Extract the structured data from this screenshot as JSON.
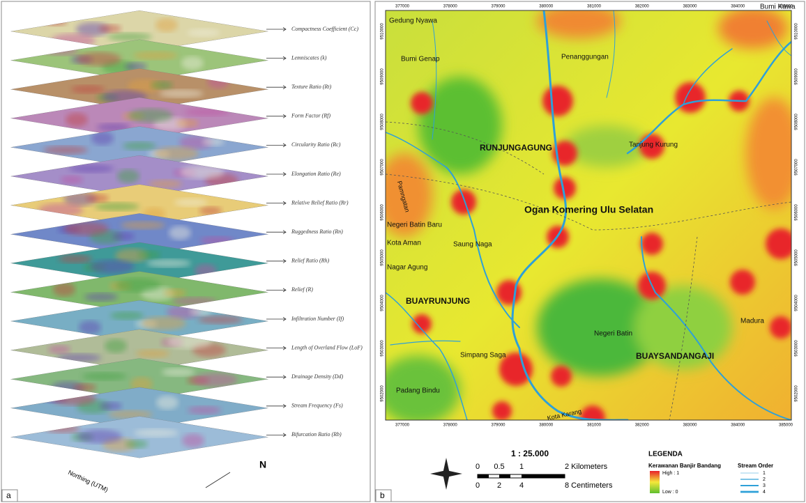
{
  "panel_a": {
    "label": "a",
    "layers": [
      "Compactness Coefficient (Cc)",
      "Lemniscates (k)",
      "Texture Ratio (Rt)",
      "Form Factor (Rf)",
      "Circularity Ratio (Rc)",
      "Elongation Ratio (Re)",
      "Relative Relief Ratio (Rr)",
      "Ruggedness Ratio (Rn)",
      "Relief Ratio (Rh)",
      "Relief (R)",
      "Infiltration Number (If)",
      "Length of Overland Flow (LoF)",
      "Drainage Density (Dd)",
      "Stream Frequency (Fs)",
      "Bifurcation Ratio (Rb)"
    ],
    "axis_label": "Northing (UTM)",
    "north": "N"
  },
  "panel_b": {
    "label": "b",
    "x_ticks": [
      "377000",
      "378000",
      "379000",
      "380000",
      "381000",
      "382000",
      "383000",
      "384000",
      "385000"
    ],
    "y_ticks": [
      "9510000",
      "9509000",
      "9508000",
      "9507000",
      "9506000",
      "9505000",
      "9504000",
      "9503000",
      "9502000"
    ],
    "places": [
      "Gedung Nyawa",
      "Bumi Genap",
      "Penanggungan",
      "Bumi Kawa",
      "RUNJUNGAGUNG",
      "Tanjung Kurung",
      "Pamngatan",
      "Ogan Komering Ulu Selatan",
      "Negeri Batin Baru",
      "Kota Aman",
      "Saung Naga",
      "Nagar Agung",
      "BUAYRUNJUNG",
      "Negeri Batin",
      "BUAYSANDANGAJI",
      "Madura",
      "Simpang Saga",
      "Padang Bindu",
      "Kota Karang"
    ],
    "scale": "1 : 25.000",
    "scale_km": [
      "0",
      "0.5",
      "1",
      "2 Kilometers"
    ],
    "scale_cm": [
      "0",
      "2",
      "4",
      "8 Centimeters"
    ],
    "legend": {
      "title": "LEGENDA",
      "hazard_title": "Kerawanan Banjir Bandang",
      "high": "High : 1",
      "low": "Low : 0",
      "stream_title": "Stream Order",
      "stream_orders": [
        "1",
        "2",
        "3",
        "4"
      ]
    }
  }
}
